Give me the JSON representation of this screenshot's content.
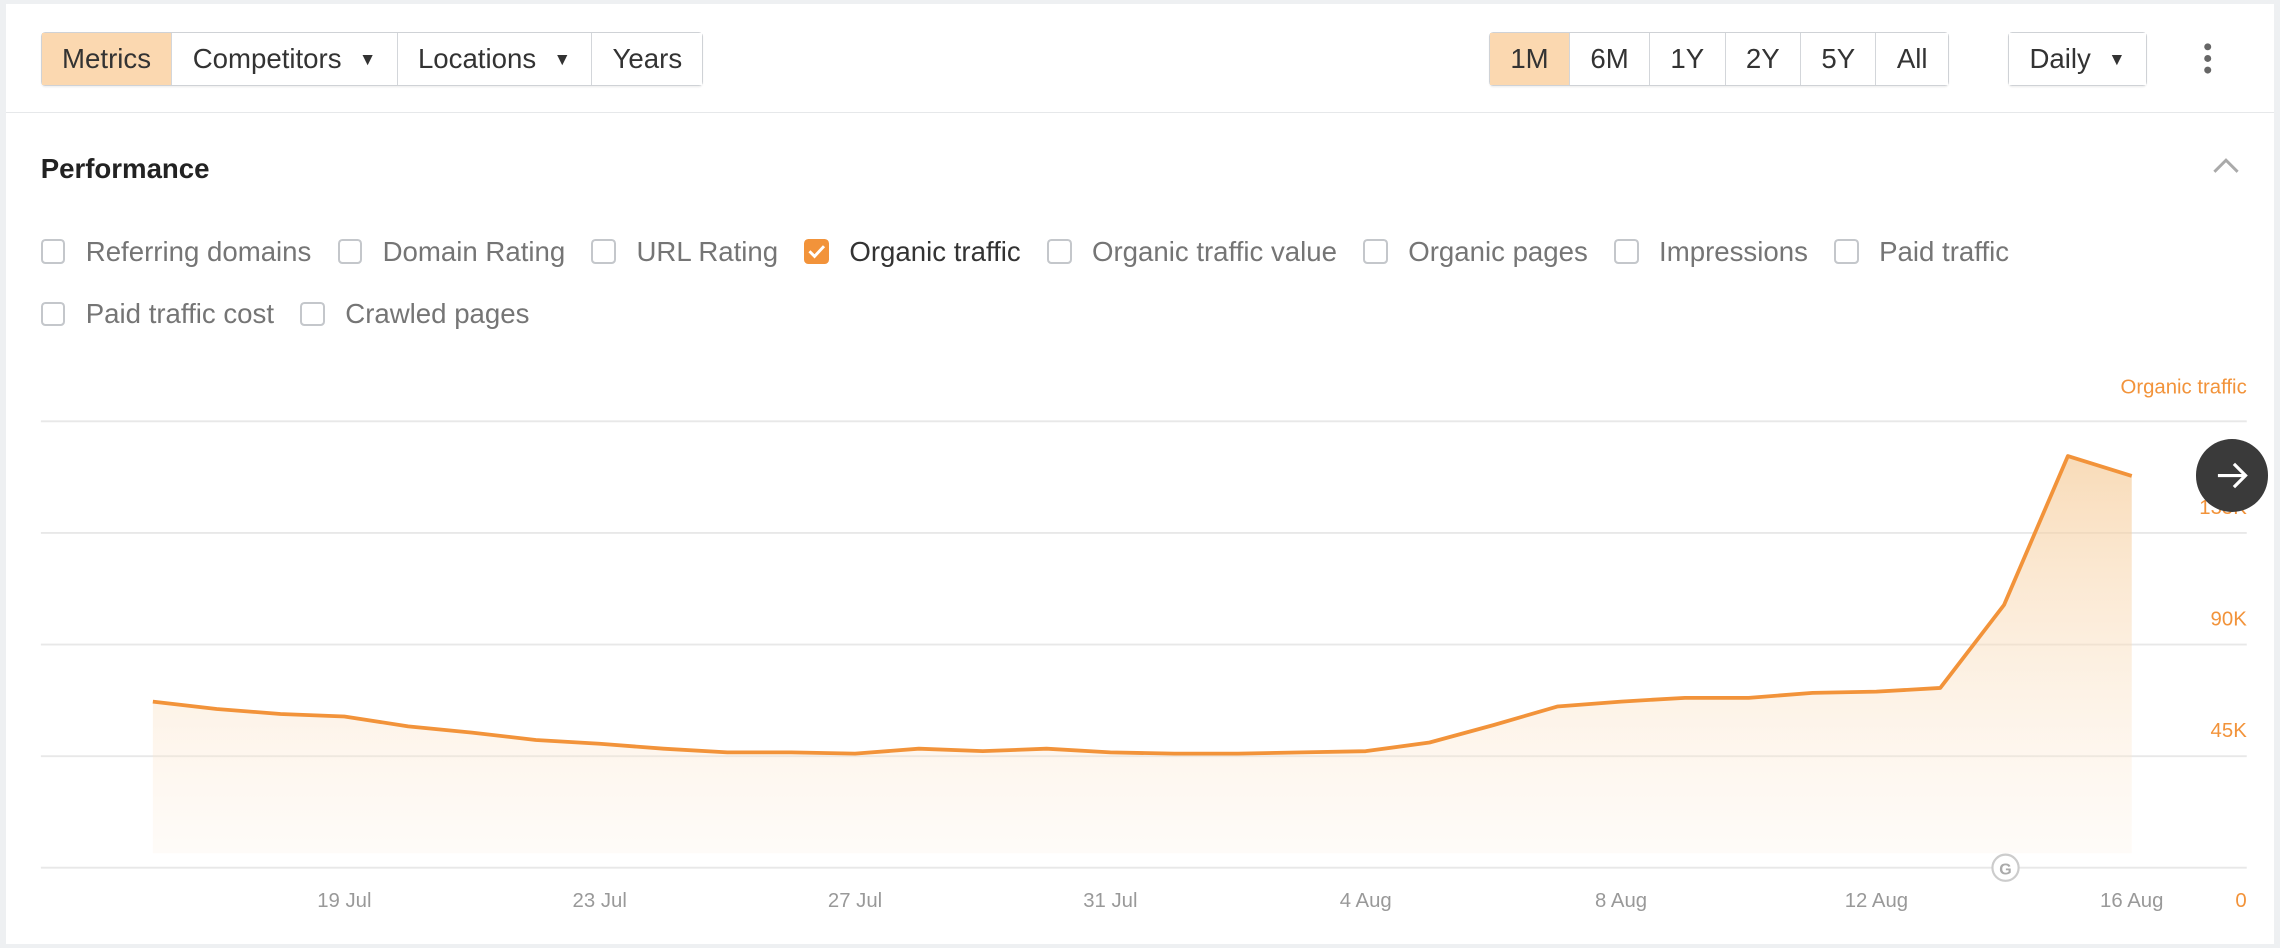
{
  "toolbar": {
    "left": [
      {
        "label": "Metrics",
        "active": true,
        "dropdown": false
      },
      {
        "label": "Competitors",
        "active": false,
        "dropdown": true
      },
      {
        "label": "Locations",
        "active": false,
        "dropdown": true
      },
      {
        "label": "Years",
        "active": false,
        "dropdown": false
      }
    ],
    "ranges": [
      {
        "label": "1M",
        "active": true
      },
      {
        "label": "6M",
        "active": false
      },
      {
        "label": "1Y",
        "active": false
      },
      {
        "label": "2Y",
        "active": false
      },
      {
        "label": "5Y",
        "active": false
      },
      {
        "label": "All",
        "active": false
      }
    ],
    "interval": "Daily",
    "more_icon": "kebab-vertical-icon"
  },
  "section": {
    "title": "Performance",
    "collapse_icon": "chevron-up-icon"
  },
  "metrics": [
    {
      "label": "Referring domains",
      "checked": false
    },
    {
      "label": "Domain Rating",
      "checked": false
    },
    {
      "label": "URL Rating",
      "checked": false
    },
    {
      "label": "Organic traffic",
      "checked": true
    },
    {
      "label": "Organic traffic value",
      "checked": false
    },
    {
      "label": "Organic pages",
      "checked": false
    },
    {
      "label": "Impressions",
      "checked": false
    },
    {
      "label": "Paid traffic",
      "checked": false
    },
    {
      "label": "Paid traffic cost",
      "checked": false
    },
    {
      "label": "Crawled pages",
      "checked": false
    }
  ],
  "colors": {
    "accent": "#f2933a",
    "active_button": "#fbd8b0",
    "arrow_button": "#3a3a3a"
  },
  "chart_data": {
    "type": "area",
    "ylabel": "Organic traffic",
    "ylim": [
      0,
      180000
    ],
    "yticks": [
      "0",
      "45K",
      "90K",
      "135K"
    ],
    "xticks": [
      "19 Jul",
      "23 Jul",
      "27 Jul",
      "31 Jul",
      "4 Aug",
      "8 Aug",
      "12 Aug",
      "16 Aug"
    ],
    "grid": true,
    "x": [
      "16 Jul",
      "17 Jul",
      "18 Jul",
      "19 Jul",
      "20 Jul",
      "21 Jul",
      "22 Jul",
      "23 Jul",
      "24 Jul",
      "25 Jul",
      "26 Jul",
      "27 Jul",
      "28 Jul",
      "29 Jul",
      "30 Jul",
      "31 Jul",
      "1 Aug",
      "2 Aug",
      "3 Aug",
      "4 Aug",
      "5 Aug",
      "6 Aug",
      "7 Aug",
      "8 Aug",
      "9 Aug",
      "10 Aug",
      "11 Aug",
      "12 Aug",
      "13 Aug",
      "14 Aug",
      "15 Aug",
      "16 Aug"
    ],
    "series": [
      {
        "name": "Organic traffic",
        "values": [
          67000,
          64000,
          62000,
          61000,
          57000,
          54500,
          51500,
          50000,
          48000,
          46500,
          46500,
          46000,
          48000,
          47000,
          48000,
          46500,
          46000,
          46000,
          46500,
          47000,
          50500,
          57500,
          65000,
          67000,
          68500,
          68500,
          70500,
          71000,
          72500,
          106000,
          166000,
          158000
        ]
      }
    ],
    "annotation_icon": "google-update-icon"
  }
}
